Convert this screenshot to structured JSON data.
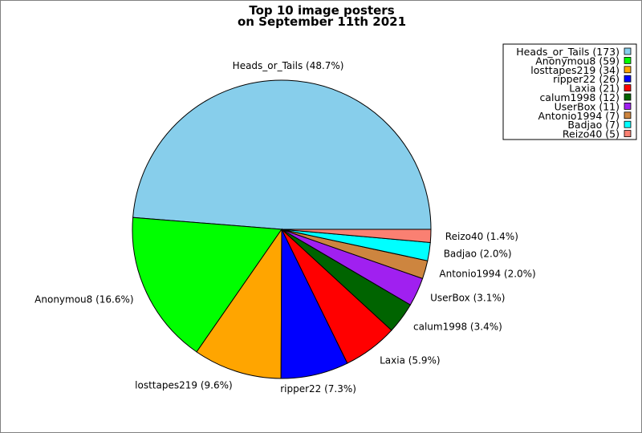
{
  "chart_data": {
    "type": "pie",
    "title": "Top 10 image posters",
    "subtitle": "on September 11th 2021",
    "slices": [
      {
        "name": "Heads_or_Tails",
        "value": 173,
        "percent": "48.7%",
        "color": "#87ceeb"
      },
      {
        "name": "Anonymou8",
        "value": 59,
        "percent": "16.6%",
        "color": "#00ff00"
      },
      {
        "name": "losttapes219",
        "value": 34,
        "percent": "9.6%",
        "color": "#ffa500"
      },
      {
        "name": "ripper22",
        "value": 26,
        "percent": "7.3%",
        "color": "#0000ff"
      },
      {
        "name": "Laxia",
        "value": 21,
        "percent": "5.9%",
        "color": "#ff0000"
      },
      {
        "name": "calum1998",
        "value": 12,
        "percent": "3.4%",
        "color": "#006400"
      },
      {
        "name": "UserBox",
        "value": 11,
        "percent": "3.1%",
        "color": "#a020f0"
      },
      {
        "name": "Antonio1994",
        "value": 7,
        "percent": "2.0%",
        "color": "#cd853f"
      },
      {
        "name": "Badjao",
        "value": 7,
        "percent": "2.0%",
        "color": "#00ffff"
      },
      {
        "name": "Reizo40",
        "value": 5,
        "percent": "1.4%",
        "color": "#fa8072"
      }
    ],
    "legend_position": "top-right"
  }
}
